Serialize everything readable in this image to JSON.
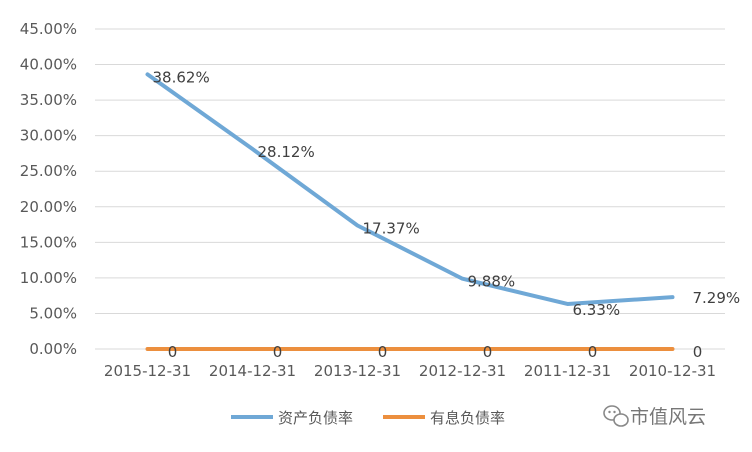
{
  "chart_data": {
    "type": "line",
    "categories": [
      "2015-12-31",
      "2014-12-31",
      "2013-12-31",
      "2012-12-31",
      "2011-12-31",
      "2010-12-31"
    ],
    "series": [
      {
        "name": "资产负债率",
        "color": "#6fa8d6",
        "values": [
          38.62,
          28.12,
          17.37,
          9.88,
          6.33,
          7.29
        ],
        "labels": [
          "38.62%",
          "28.12%",
          "17.37%",
          "9.88%",
          "6.33%",
          "7.29%"
        ]
      },
      {
        "name": "有息负债率",
        "color": "#ec8f3e",
        "values": [
          0,
          0,
          0,
          0,
          0,
          0
        ],
        "labels": [
          "0",
          "0",
          "0",
          "0",
          "0",
          "0"
        ]
      }
    ],
    "y_ticks": [
      "0.00%",
      "5.00%",
      "10.00%",
      "15.00%",
      "20.00%",
      "25.00%",
      "30.00%",
      "35.00%",
      "40.00%",
      "45.00%"
    ],
    "ylim": [
      0,
      45
    ],
    "grid": true,
    "legend_position": "bottom"
  },
  "watermark": {
    "text": "市值风云",
    "icon": "wechat-icon"
  }
}
